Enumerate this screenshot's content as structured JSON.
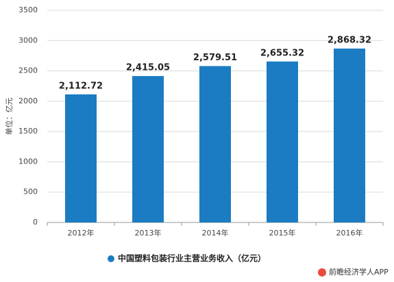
{
  "chart_data": {
    "type": "bar",
    "y_label": "单位：亿元",
    "categories": [
      "2012年",
      "2013年",
      "2014年",
      "2015年",
      "2016年"
    ],
    "series": [
      {
        "name": "中国塑料包装行业主营业务收入（亿元）",
        "color": "#1b7cc3",
        "values": [
          2112.72,
          2415.05,
          2579.51,
          2655.32,
          2868.32
        ],
        "value_labels": [
          "2,112.72",
          "2,415.05",
          "2,579.51",
          "2,655.32",
          "2,868.32"
        ]
      }
    ],
    "ylim": [
      0,
      3500
    ],
    "yticks": [
      0,
      500,
      1000,
      1500,
      2000,
      2500,
      3000,
      3500
    ],
    "grid": true,
    "source": "前瞻经济学人APP"
  }
}
